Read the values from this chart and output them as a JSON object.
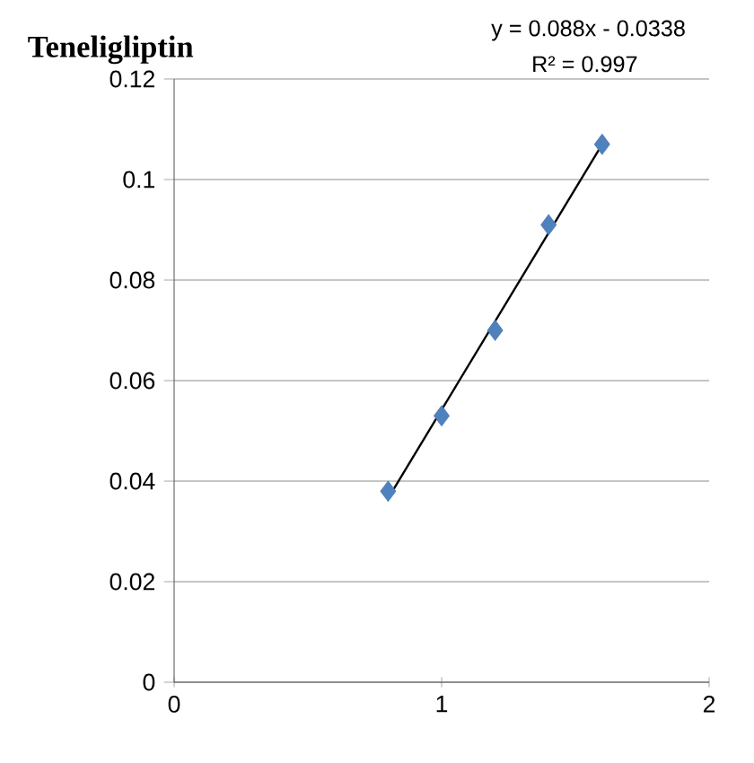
{
  "chart_data": {
    "type": "scatter",
    "title": "Teneligliptin",
    "annotations": [
      "y = 0.088x - 0.0338",
      "R² = 0.997"
    ],
    "xlim": [
      0,
      2
    ],
    "xticks": [
      0,
      1,
      2
    ],
    "ylim": [
      0,
      0.12
    ],
    "yticks": [
      0,
      0.02,
      0.04,
      0.06,
      0.08,
      0.1,
      0.12
    ],
    "grid": "y",
    "series": [
      {
        "color": "#4f81bd",
        "marker": "diamond",
        "x": [
          0.8,
          1.0,
          1.2,
          1.4,
          1.6
        ],
        "values": [
          0.038,
          0.053,
          0.07,
          0.091,
          0.107
        ]
      },
      {
        "type": "line",
        "marker": "none",
        "color": "#000000",
        "x": [
          0.8,
          1.6
        ],
        "values": [
          0.0366,
          0.107
        ]
      }
    ]
  }
}
